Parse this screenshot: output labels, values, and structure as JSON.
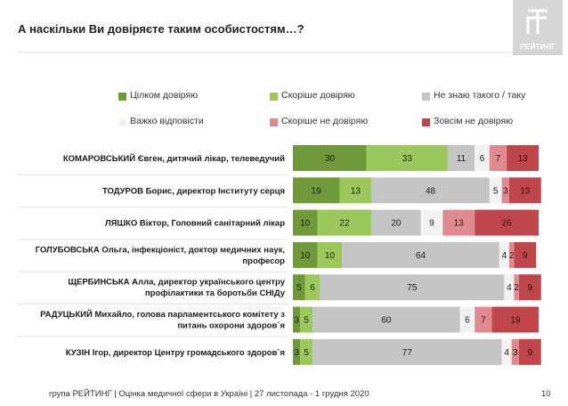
{
  "title": "А наскільки Ви довіряєте таким особистостям…?",
  "logo": {
    "text": "РЕЙТИНГ",
    "icon": "rating-logo-icon"
  },
  "footer": {
    "text": "група РЕЙТИНГ  |  Оцінка медичної сфери в Україні  | 27 листопада - 1 грудня 2020",
    "page": "10"
  },
  "chart_data": {
    "type": "bar",
    "stacked": true,
    "orientation": "horizontal",
    "xlim": [
      0,
      100
    ],
    "grid": false,
    "legend_position": "top",
    "categories": [
      "КОМАРОВСЬКИЙ Євген, дитячий лікар, телеведучий",
      "ТОДУРОВ Борис, директор Інституту серця",
      "ЛЯШКО Віктор, Головний санітарний лікар",
      "ГОЛУБОВСЬКА Ольга, інфекціоніст, доктор медичних наук, професор",
      "ЩЕРБИНСЬКА Алла, директор українського центру профілактики та боротьби СНІДу",
      "РАДУЦЬКИЙ Михайло, голова парламентського комітету з питань охорони здоров`я",
      "КУЗІН Ігор, директор Центру громадського здоров`я"
    ],
    "category_lines": [
      [
        "КОМАРОВСЬКИЙ Євген, дитячий лікар, телеведучий"
      ],
      [
        "ТОДУРОВ Борис, директор Інституту серця"
      ],
      [
        "ЛЯШКО Віктор, Головний санітарний лікар"
      ],
      [
        "ГОЛУБОВСЬКА Ольга, інфекціоніст, доктор медичних наук,",
        "професор"
      ],
      [
        "ЩЕРБИНСЬКА Алла, директор українського центру",
        "профілактики та боротьби СНІДу"
      ],
      [
        "РАДУЦЬКИЙ Михайло, голова парламентського комітету з",
        "питань охорони здоров`я"
      ],
      [
        "КУЗІН Ігор, директор Центру громадського здоров`я"
      ]
    ],
    "series": [
      {
        "name": "Цілком довіряю",
        "color": "#6e9a3a",
        "values": [
          30,
          19,
          10,
          10,
          5,
          3,
          3
        ]
      },
      {
        "name": "Скоріше довіряю",
        "color": "#9bc85a",
        "values": [
          33,
          13,
          22,
          10,
          6,
          5,
          5
        ]
      },
      {
        "name": "Не знаю такого / таку",
        "color": "#c4c4c4",
        "values": [
          11,
          48,
          20,
          64,
          75,
          60,
          77
        ]
      },
      {
        "name": "Важко відповісти",
        "color": "#f2f2f2",
        "values": [
          6,
          5,
          9,
          4,
          4,
          6,
          4
        ]
      },
      {
        "name": "Скоріше не довіряю",
        "color": "#e08a8f",
        "values": [
          7,
          3,
          13,
          2,
          2,
          7,
          3
        ]
      },
      {
        "name": "Зовсім не довіряю",
        "color": "#c0454b",
        "values": [
          13,
          13,
          26,
          9,
          9,
          19,
          9
        ]
      }
    ]
  }
}
